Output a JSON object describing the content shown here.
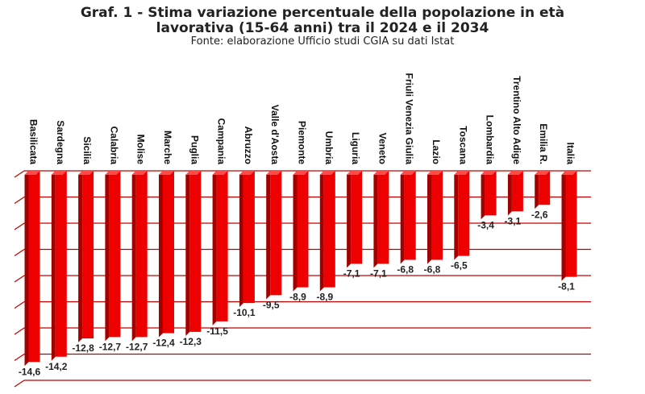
{
  "title_line1": "Graf. 1 - Stima variazione percentuale della popolazione in età",
  "title_line2": "lavorativa (15-64 anni) tra il 2024 e il 2034",
  "source": "Fonte: elaborazione Ufficio studi CGIA su dati Istat",
  "colors": {
    "bar": "#ee0000",
    "bar_dark": "#a30000",
    "gridline": "#c00000"
  },
  "chart_data": {
    "type": "bar",
    "title": "Graf. 1 - Stima variazione percentuale della popolazione in età lavorativa (15-64 anni) tra il 2024 e il 2034",
    "categories": [
      "Basilicata",
      "Sardegna",
      "Sicilia",
      "Calabria",
      "Molise",
      "Marche",
      "Puglia",
      "Campania",
      "Abruzzo",
      "Valle d'Aosta",
      "Piemonte",
      "Umbria",
      "Liguria",
      "Veneto",
      "Friuli Venezia Giulia",
      "Lazio",
      "Toscana",
      "Lombardia",
      "Trentino Alto Adige",
      "Emilia R.",
      "Italia"
    ],
    "values": [
      -14.6,
      -14.2,
      -12.8,
      -12.7,
      -12.7,
      -12.4,
      -12.3,
      -11.5,
      -10.1,
      -9.5,
      -8.9,
      -8.9,
      -7.1,
      -7.1,
      -6.8,
      -6.8,
      -6.5,
      -3.4,
      -3.1,
      -2.6,
      -8.1
    ],
    "value_labels": [
      "-14,6",
      "-14,2",
      "-12,8",
      "-12,7",
      "-12,7",
      "-12,4",
      "-12,3",
      "-11,5",
      "-10,1",
      "-9,5",
      "-8,9",
      "-8,9",
      "-7,1",
      "-7,1",
      "-6,8",
      "-6,8",
      "-6,5",
      "-3,4",
      "-3,1",
      "-2,6",
      "-8,1"
    ],
    "ylim": [
      -16,
      0
    ],
    "gridline_step": 2,
    "grid": true,
    "legend": "none"
  }
}
